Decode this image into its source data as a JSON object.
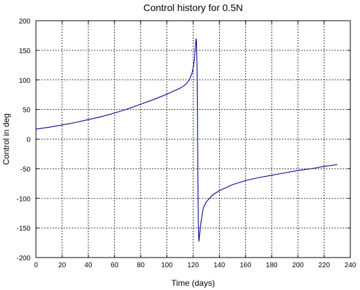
{
  "chart_data": {
    "type": "line",
    "title": "Control history for 0.5N",
    "xlabel": "Time (days)",
    "ylabel": "Control in deg",
    "xlim": [
      0,
      240
    ],
    "ylim": [
      -200,
      200
    ],
    "xticks": [
      0,
      20,
      40,
      60,
      80,
      100,
      120,
      140,
      160,
      180,
      200,
      220,
      240
    ],
    "yticks": [
      -200,
      -150,
      -100,
      -50,
      0,
      50,
      100,
      150,
      200
    ],
    "grid": true,
    "legend": "none",
    "series": [
      {
        "color": "#00008b",
        "points": [
          [
            0,
            17
          ],
          [
            10,
            20
          ],
          [
            20,
            24
          ],
          [
            30,
            28
          ],
          [
            40,
            33
          ],
          [
            50,
            38
          ],
          [
            60,
            44
          ],
          [
            70,
            51
          ],
          [
            80,
            59
          ],
          [
            90,
            67
          ],
          [
            100,
            76
          ],
          [
            105,
            81
          ],
          [
            110,
            86
          ],
          [
            113,
            90
          ],
          [
            115,
            94
          ],
          [
            117,
            100
          ],
          [
            119,
            110
          ],
          [
            120,
            120
          ],
          [
            121,
            135
          ],
          [
            121.5,
            150
          ],
          [
            122,
            163
          ],
          [
            122.3,
            170
          ],
          [
            122.6,
            162
          ],
          [
            123,
            120
          ],
          [
            123.3,
            40
          ],
          [
            123.6,
            -60
          ],
          [
            124,
            -140
          ],
          [
            124.4,
            -173
          ],
          [
            125,
            -160
          ],
          [
            126,
            -140
          ],
          [
            127,
            -125
          ],
          [
            128,
            -115
          ],
          [
            130,
            -106
          ],
          [
            135,
            -94
          ],
          [
            140,
            -87
          ],
          [
            150,
            -77
          ],
          [
            160,
            -70
          ],
          [
            170,
            -65
          ],
          [
            180,
            -61
          ],
          [
            190,
            -57
          ],
          [
            200,
            -53
          ],
          [
            210,
            -50
          ],
          [
            220,
            -46
          ],
          [
            230,
            -43
          ]
        ]
      }
    ]
  }
}
